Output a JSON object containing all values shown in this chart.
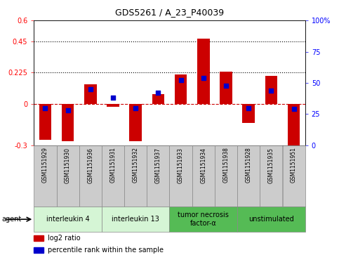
{
  "title": "GDS5261 / A_23_P40039",
  "samples": [
    "GSM1151929",
    "GSM1151930",
    "GSM1151936",
    "GSM1151931",
    "GSM1151932",
    "GSM1151937",
    "GSM1151933",
    "GSM1151934",
    "GSM1151938",
    "GSM1151928",
    "GSM1151935",
    "GSM1151951"
  ],
  "log2_ratio": [
    -0.26,
    -0.27,
    0.14,
    -0.02,
    -0.27,
    0.07,
    0.21,
    0.47,
    0.23,
    -0.14,
    0.2,
    -0.3
  ],
  "percentile": [
    30,
    28,
    45,
    38,
    30,
    42,
    52,
    54,
    48,
    30,
    44,
    29
  ],
  "ylim_left": [
    -0.3,
    0.6
  ],
  "ylim_right": [
    0,
    100
  ],
  "yticks_left": [
    -0.3,
    0,
    0.225,
    0.45,
    0.6
  ],
  "yticks_right": [
    0,
    25,
    50,
    75,
    100
  ],
  "ytick_labels_left": [
    "-0.3",
    "0",
    "0.225",
    "0.45",
    "0.6"
  ],
  "ytick_labels_right": [
    "0",
    "25",
    "50",
    "75",
    "100%"
  ],
  "hlines": [
    0.45,
    0.225
  ],
  "dashed_zero": 0,
  "groups": [
    {
      "label": "interleukin 4",
      "start": 0,
      "end": 3,
      "color": "#d5f5d5"
    },
    {
      "label": "interleukin 13",
      "start": 3,
      "end": 6,
      "color": "#d5f5d5"
    },
    {
      "label": "tumor necrosis\nfactor-α",
      "start": 6,
      "end": 9,
      "color": "#55bb55"
    },
    {
      "label": "unstimulated",
      "start": 9,
      "end": 12,
      "color": "#55bb55"
    }
  ],
  "bar_color": "#cc0000",
  "dot_color": "#0000cc",
  "bar_width": 0.55,
  "dot_size": 18,
  "plot_bg": "#ffffff",
  "zero_line_color": "#cc0000",
  "font_size": 7,
  "title_font_size": 9,
  "legend_log2": "log2 ratio",
  "legend_pct": "percentile rank within the sample",
  "agent_label": "agent",
  "sample_bg": "#cccccc",
  "sample_font_size": 5.5,
  "group_font_size": 7
}
